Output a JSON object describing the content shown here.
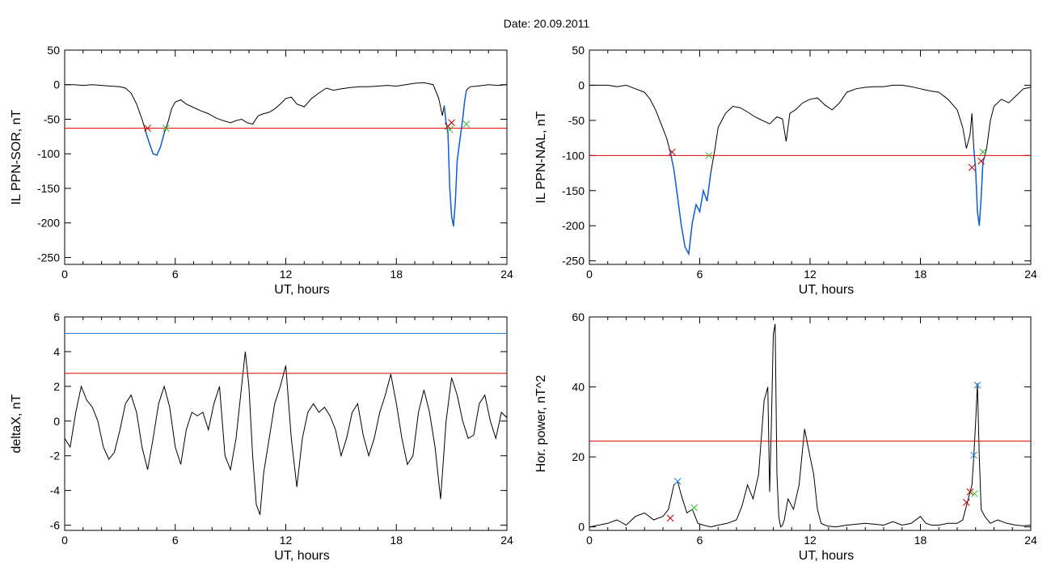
{
  "figure_title": "Date:  20.09.2011",
  "colors": {
    "trace": "#000000",
    "threshold": "#e00000",
    "segment": "#1060d0",
    "onset_marker": "#c00000",
    "end_marker": "#30c030",
    "peak_marker": "#2080e0",
    "limit_line": "#2070d0"
  },
  "chart_data": [
    {
      "type": "line",
      "panel": "top-left",
      "title": "",
      "xlabel": "UT, hours",
      "ylabel": "IL PPN-SOR, nT",
      "xlim": [
        0,
        24
      ],
      "ylim": [
        -260,
        50
      ],
      "xticks": [
        0,
        6,
        12,
        18,
        24
      ],
      "yticks": [
        50,
        0,
        -50,
        -100,
        -150,
        -200,
        -250
      ],
      "series": [
        {
          "values_x": [
            0,
            0.5,
            1,
            1.5,
            2,
            2.5,
            3,
            3.3,
            3.6,
            3.9,
            4.2,
            4.4,
            4.6,
            4.8,
            5.0,
            5.2,
            5.4,
            5.6,
            5.8,
            6.0,
            6.3,
            6.6,
            7.0,
            7.4,
            7.8,
            8.2,
            8.6,
            9.0,
            9.3,
            9.6,
            9.9,
            10.2,
            10.5,
            10.8,
            11.1,
            11.4,
            11.7,
            12.0,
            12.3,
            12.6,
            13.0,
            13.4,
            13.8,
            14.2,
            14.6,
            15.0,
            15.5,
            16.0,
            16.5,
            17.0,
            17.5,
            18.0,
            18.5,
            19.0,
            19.5,
            20.0,
            20.3,
            20.5,
            20.6,
            20.7,
            20.8,
            20.9,
            21.0,
            21.1,
            21.2,
            21.3,
            21.4,
            21.5,
            21.6,
            21.7,
            21.8,
            22.0,
            22.4,
            23.0,
            23.5,
            24.0
          ],
          "values_y": [
            0,
            0,
            -1,
            0,
            -1,
            -2,
            -3,
            -5,
            -12,
            -28,
            -50,
            -68,
            -85,
            -100,
            -102,
            -90,
            -70,
            -55,
            -35,
            -25,
            -22,
            -28,
            -33,
            -38,
            -42,
            -48,
            -52,
            -55,
            -52,
            -50,
            -55,
            -57,
            -45,
            -42,
            -40,
            -35,
            -28,
            -20,
            -18,
            -28,
            -32,
            -20,
            -12,
            -5,
            -8,
            -6,
            -4,
            -3,
            -3,
            -2,
            -1,
            -2,
            0,
            2,
            3,
            0,
            -20,
            -45,
            -30,
            -55,
            -70,
            -150,
            -190,
            -205,
            -170,
            -110,
            -90,
            -70,
            -50,
            -25,
            -8,
            -3,
            -2,
            0,
            -1,
            0
          ]
        }
      ],
      "threshold": -63,
      "highlight_segments": [
        [
          4.3,
          5.5
        ],
        [
          20.6,
          21.8
        ]
      ],
      "markers": [
        {
          "x": 4.5,
          "y": -63,
          "kind": "onset"
        },
        {
          "x": 5.5,
          "y": -63,
          "kind": "end"
        },
        {
          "x": 20.8,
          "y": -60,
          "kind": "onset"
        },
        {
          "x": 21.0,
          "y": -55,
          "kind": "onset"
        },
        {
          "x": 20.9,
          "y": -65,
          "kind": "end"
        },
        {
          "x": 21.8,
          "y": -57,
          "kind": "end"
        }
      ]
    },
    {
      "type": "line",
      "panel": "top-right",
      "title": "",
      "xlabel": "UT, hours",
      "ylabel": "IL PPN-NAL, nT",
      "xlim": [
        0,
        24
      ],
      "ylim": [
        -255,
        50
      ],
      "xticks": [
        0,
        6,
        12,
        18,
        24
      ],
      "yticks": [
        50,
        0,
        -50,
        -100,
        -150,
        -200,
        -250
      ],
      "series": [
        {
          "values_x": [
            0,
            0.5,
            1,
            1.5,
            2,
            2.5,
            3,
            3.3,
            3.6,
            3.9,
            4.2,
            4.4,
            4.6,
            4.8,
            5.0,
            5.2,
            5.4,
            5.6,
            5.8,
            6.0,
            6.2,
            6.4,
            6.6,
            6.8,
            7.0,
            7.4,
            7.8,
            8.2,
            8.6,
            9.0,
            9.4,
            9.8,
            10.2,
            10.5,
            10.7,
            10.9,
            11.2,
            11.6,
            12.0,
            12.4,
            12.8,
            13.2,
            13.6,
            14.0,
            14.5,
            15.0,
            15.5,
            16.0,
            16.5,
            17.0,
            17.5,
            18.0,
            18.5,
            19.0,
            19.5,
            20.0,
            20.3,
            20.5,
            20.7,
            20.8,
            20.9,
            21.0,
            21.1,
            21.2,
            21.3,
            21.4,
            21.5,
            21.6,
            21.8,
            22.0,
            22.4,
            22.8,
            23.2,
            23.6,
            24.0
          ],
          "values_y": [
            0,
            0,
            0,
            -2,
            0,
            -5,
            -10,
            -20,
            -35,
            -55,
            -75,
            -95,
            -120,
            -160,
            -200,
            -230,
            -240,
            -195,
            -170,
            -180,
            -150,
            -165,
            -125,
            -95,
            -60,
            -40,
            -30,
            -32,
            -38,
            -45,
            -50,
            -55,
            -45,
            -48,
            -80,
            -40,
            -35,
            -25,
            -20,
            -18,
            -28,
            -35,
            -25,
            -10,
            -5,
            -3,
            -2,
            -2,
            0,
            0,
            -2,
            -5,
            -8,
            -10,
            -20,
            -35,
            -60,
            -90,
            -70,
            -40,
            -90,
            -120,
            -180,
            -200,
            -160,
            -110,
            -100,
            -90,
            -50,
            -30,
            -20,
            -25,
            -15,
            -5,
            -3
          ]
        }
      ],
      "threshold": -100,
      "highlight_segments": [
        [
          4.3,
          6.6
        ],
        [
          20.9,
          21.5
        ]
      ],
      "markers": [
        {
          "x": 4.5,
          "y": -95,
          "kind": "onset"
        },
        {
          "x": 6.5,
          "y": -100,
          "kind": "end"
        },
        {
          "x": 20.8,
          "y": -117,
          "kind": "onset"
        },
        {
          "x": 21.3,
          "y": -108,
          "kind": "onset"
        },
        {
          "x": 21.4,
          "y": -95,
          "kind": "end"
        }
      ]
    },
    {
      "type": "line",
      "panel": "bottom-left",
      "title": "",
      "xlabel": "UT, hours",
      "ylabel": "deltaX, nT",
      "xlim": [
        0,
        24
      ],
      "ylim": [
        -6.3,
        6
      ],
      "xticks": [
        0,
        6,
        12,
        18,
        24
      ],
      "yticks": [
        6,
        4,
        2,
        0,
        -2,
        -4,
        -6
      ],
      "series": [
        {
          "values_x": [
            0,
            0.3,
            0.6,
            0.9,
            1.2,
            1.5,
            1.8,
            2.1,
            2.4,
            2.7,
            3.0,
            3.3,
            3.6,
            3.9,
            4.2,
            4.5,
            4.8,
            5.1,
            5.4,
            5.7,
            6.0,
            6.3,
            6.6,
            6.9,
            7.2,
            7.5,
            7.8,
            8.1,
            8.4,
            8.7,
            9.0,
            9.3,
            9.6,
            9.8,
            10.0,
            10.2,
            10.4,
            10.6,
            10.8,
            11.1,
            11.4,
            11.7,
            12.0,
            12.3,
            12.6,
            12.9,
            13.2,
            13.5,
            13.8,
            14.1,
            14.4,
            14.7,
            15.0,
            15.3,
            15.6,
            15.9,
            16.2,
            16.5,
            16.8,
            17.1,
            17.4,
            17.7,
            18.0,
            18.3,
            18.6,
            18.9,
            19.2,
            19.5,
            19.8,
            20.1,
            20.4,
            20.7,
            21.0,
            21.3,
            21.6,
            21.9,
            22.2,
            22.5,
            22.8,
            23.1,
            23.4,
            23.7,
            24.0
          ],
          "values_y": [
            -1,
            -1.5,
            0.5,
            2,
            1.2,
            0.8,
            0,
            -1.5,
            -2.2,
            -1.8,
            -0.5,
            1,
            1.5,
            0.5,
            -1.5,
            -2.8,
            -1,
            1,
            2,
            0.8,
            -1.5,
            -2.5,
            -0.5,
            0.5,
            0.3,
            0.5,
            -0.5,
            1,
            2,
            -2,
            -2.8,
            -1,
            2,
            4,
            2,
            -2,
            -4.8,
            -5.4,
            -3,
            -1,
            1,
            2,
            3.2,
            -1,
            -3.8,
            -1,
            0.5,
            1,
            0.5,
            0.8,
            0.3,
            -0.5,
            -2,
            -1,
            0.5,
            1,
            -0.8,
            -2,
            -1,
            0.5,
            1.5,
            2.7,
            1,
            -1,
            -2.5,
            -2,
            0.5,
            1.8,
            0.5,
            -1.5,
            -4.5,
            0,
            2.5,
            1.5,
            0,
            -1,
            -0.8,
            1,
            1.5,
            0,
            -1,
            0.5,
            0.2
          ]
        }
      ],
      "threshold": 2.75,
      "upper_limit": 5.05
    },
    {
      "type": "line",
      "panel": "bottom-right",
      "title": "",
      "xlabel": "UT, hours",
      "ylabel": "Hor. power, nT^2",
      "xlim": [
        0,
        24
      ],
      "ylim": [
        -1,
        60
      ],
      "xticks": [
        0,
        6,
        12,
        18,
        24
      ],
      "yticks": [
        60,
        40,
        20,
        0
      ],
      "series": [
        {
          "values_x": [
            0,
            0.5,
            1,
            1.5,
            2,
            2.5,
            3,
            3.5,
            4.0,
            4.3,
            4.6,
            4.8,
            5.0,
            5.3,
            5.6,
            5.9,
            6.2,
            6.6,
            7.0,
            7.5,
            8.0,
            8.3,
            8.6,
            8.9,
            9.2,
            9.5,
            9.7,
            9.8,
            9.9,
            10.0,
            10.1,
            10.2,
            10.3,
            10.4,
            10.5,
            10.6,
            10.8,
            11.1,
            11.4,
            11.7,
            12.0,
            12.2,
            12.4,
            12.6,
            12.8,
            13.0,
            13.4,
            14.0,
            15.0,
            16.0,
            16.5,
            17.0,
            17.5,
            18.0,
            18.3,
            18.6,
            19.0,
            19.5,
            20.0,
            20.3,
            20.6,
            20.8,
            20.9,
            21.0,
            21.1,
            21.2,
            21.3,
            21.5,
            21.8,
            22.2,
            22.7,
            23.2,
            23.6,
            24.0
          ],
          "values_y": [
            0,
            0.5,
            1,
            2,
            0.5,
            3,
            4,
            2,
            3,
            5,
            12,
            13,
            9,
            4,
            5,
            1,
            0.5,
            0,
            0.5,
            1,
            2,
            6,
            12,
            8,
            15,
            36,
            40,
            10,
            30,
            55,
            58,
            15,
            3,
            0,
            0.5,
            2,
            8,
            5,
            12,
            28,
            20,
            15,
            5,
            1,
            0.5,
            0.2,
            0,
            0.5,
            1,
            0.5,
            1.5,
            0.5,
            1,
            3,
            1,
            0.5,
            0.5,
            1,
            1,
            2,
            8,
            12,
            20,
            30,
            41,
            20,
            5,
            3,
            1,
            2,
            1,
            0.5,
            0.3,
            0.5
          ]
        }
      ],
      "threshold": 24.5,
      "markers": [
        {
          "x": 4.4,
          "y": 2.5,
          "kind": "onset"
        },
        {
          "x": 4.8,
          "y": 13,
          "kind": "peak"
        },
        {
          "x": 5.7,
          "y": 5.5,
          "kind": "end"
        },
        {
          "x": 20.5,
          "y": 7,
          "kind": "onset"
        },
        {
          "x": 20.7,
          "y": 10,
          "kind": "onset"
        },
        {
          "x": 20.9,
          "y": 20.5,
          "kind": "peak"
        },
        {
          "x": 21.1,
          "y": 40.5,
          "kind": "peak"
        },
        {
          "x": 20.95,
          "y": 9.5,
          "kind": "end"
        }
      ]
    }
  ]
}
